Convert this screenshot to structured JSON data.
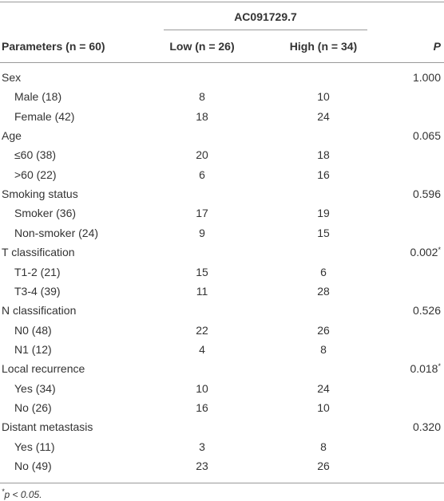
{
  "table": {
    "spanner": "AC091729.7",
    "columns": [
      "Parameters (n = 60)",
      "Low (n = 26)",
      "High (n = 34)",
      "P"
    ],
    "rows": [
      {
        "label": "Sex",
        "p": "1.000"
      },
      {
        "label": "Male (18)",
        "low": "8",
        "high": "10"
      },
      {
        "label": "Female (42)",
        "low": "18",
        "high": "24"
      },
      {
        "label": "Age",
        "p": "0.065"
      },
      {
        "label": "≤60 (38)",
        "low": "20",
        "high": "18"
      },
      {
        "label": ">60 (22)",
        "low": "6",
        "high": "16"
      },
      {
        "label": "Smoking status",
        "p": "0.596"
      },
      {
        "label": "Smoker (36)",
        "low": "17",
        "high": "19"
      },
      {
        "label": "Non-smoker (24)",
        "low": "9",
        "high": "15"
      },
      {
        "label": "T classification",
        "p": "0.002",
        "mark": "*"
      },
      {
        "label": "T1-2 (21)",
        "low": "15",
        "high": "6"
      },
      {
        "label": "T3-4 (39)",
        "low": "11",
        "high": "28"
      },
      {
        "label": "N classification",
        "p": "0.526"
      },
      {
        "label": "N0 (48)",
        "low": "22",
        "high": "26"
      },
      {
        "label": "N1 (12)",
        "low": "4",
        "high": "8"
      },
      {
        "label": "Local recurrence",
        "p": "0.018",
        "mark": "*"
      },
      {
        "label": "Yes (34)",
        "low": "10",
        "high": "24"
      },
      {
        "label": "No (26)",
        "low": "16",
        "high": "10"
      },
      {
        "label": "Distant metastasis",
        "p": "0.320"
      },
      {
        "label": "Yes (11)",
        "low": "3",
        "high": "8"
      },
      {
        "label": "No (49)",
        "low": "23",
        "high": "26"
      }
    ],
    "footnote": {
      "mark": "*",
      "text": "p < 0.05."
    }
  }
}
